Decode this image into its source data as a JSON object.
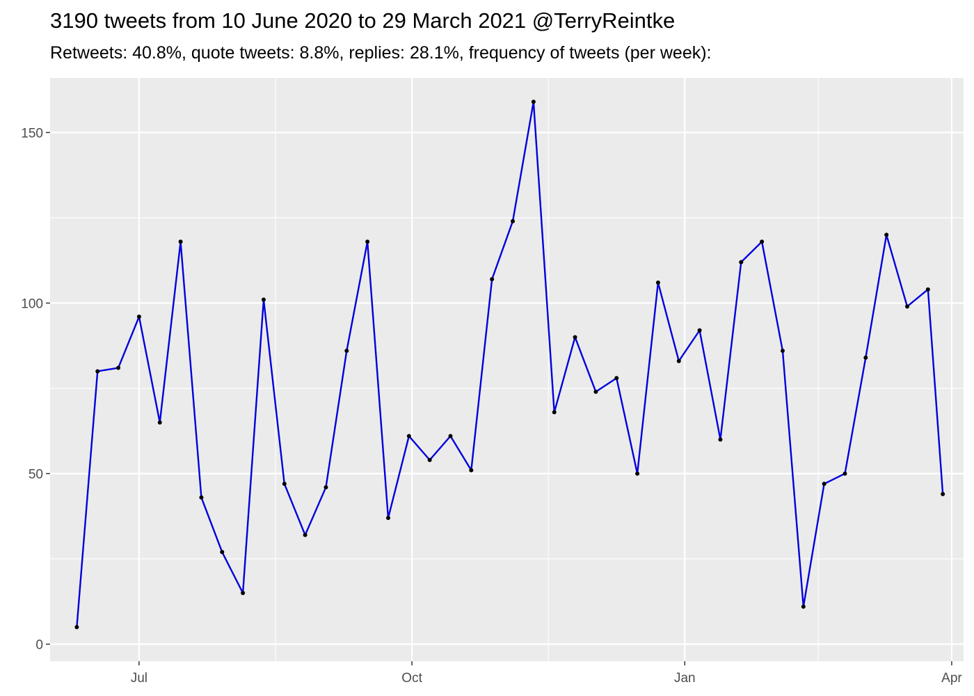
{
  "title": "3190 tweets from 10 June 2020 to 29 March 2021 @TerryReintke",
  "subtitle": "Retweets: 40.8%, quote tweets: 8.8%, replies: 28.1%, frequency of tweets (per week):",
  "colors": {
    "line": "#0000dd",
    "point": "#000000",
    "panel": "#ebebeb",
    "grid": "#ffffff",
    "tick_text": "#4d4d4d"
  },
  "chart_data": {
    "type": "line",
    "xlabel": "",
    "ylabel": "",
    "grid": true,
    "legend": "none",
    "xlim": [
      "2020-06-01",
      "2021-04-05"
    ],
    "ylim": [
      -5,
      166
    ],
    "x_ticks": [
      {
        "date": "2020-07-01",
        "label": "Jul"
      },
      {
        "date": "2020-10-01",
        "label": "Oct"
      },
      {
        "date": "2021-01-01",
        "label": "Jan"
      },
      {
        "date": "2021-04-01",
        "label": "Apr"
      }
    ],
    "y_ticks": [
      0,
      50,
      100,
      150
    ],
    "series": [
      {
        "x": [
          "2020-06-10",
          "2020-06-17",
          "2020-06-24",
          "2020-07-01",
          "2020-07-08",
          "2020-07-15",
          "2020-07-22",
          "2020-07-29",
          "2020-08-05",
          "2020-08-12",
          "2020-08-19",
          "2020-08-26",
          "2020-09-02",
          "2020-09-09",
          "2020-09-16",
          "2020-09-23",
          "2020-09-30",
          "2020-10-07",
          "2020-10-14",
          "2020-10-21",
          "2020-10-28",
          "2020-11-04",
          "2020-11-11",
          "2020-11-18",
          "2020-11-25",
          "2020-12-02",
          "2020-12-09",
          "2020-12-16",
          "2020-12-23",
          "2020-12-30",
          "2021-01-06",
          "2021-01-13",
          "2021-01-20",
          "2021-01-27",
          "2021-02-03",
          "2021-02-10",
          "2021-02-17",
          "2021-02-24",
          "2021-03-03",
          "2021-03-10",
          "2021-03-17",
          "2021-03-24",
          "2021-03-29"
        ],
        "values": [
          5,
          80,
          81,
          96,
          65,
          118,
          43,
          27,
          15,
          101,
          47,
          32,
          46,
          86,
          118,
          37,
          61,
          54,
          61,
          51,
          107,
          124,
          159,
          68,
          90,
          74,
          78,
          50,
          106,
          83,
          92,
          60,
          112,
          118,
          86,
          11,
          47,
          50,
          84,
          120,
          99,
          104,
          44
        ]
      }
    ]
  }
}
